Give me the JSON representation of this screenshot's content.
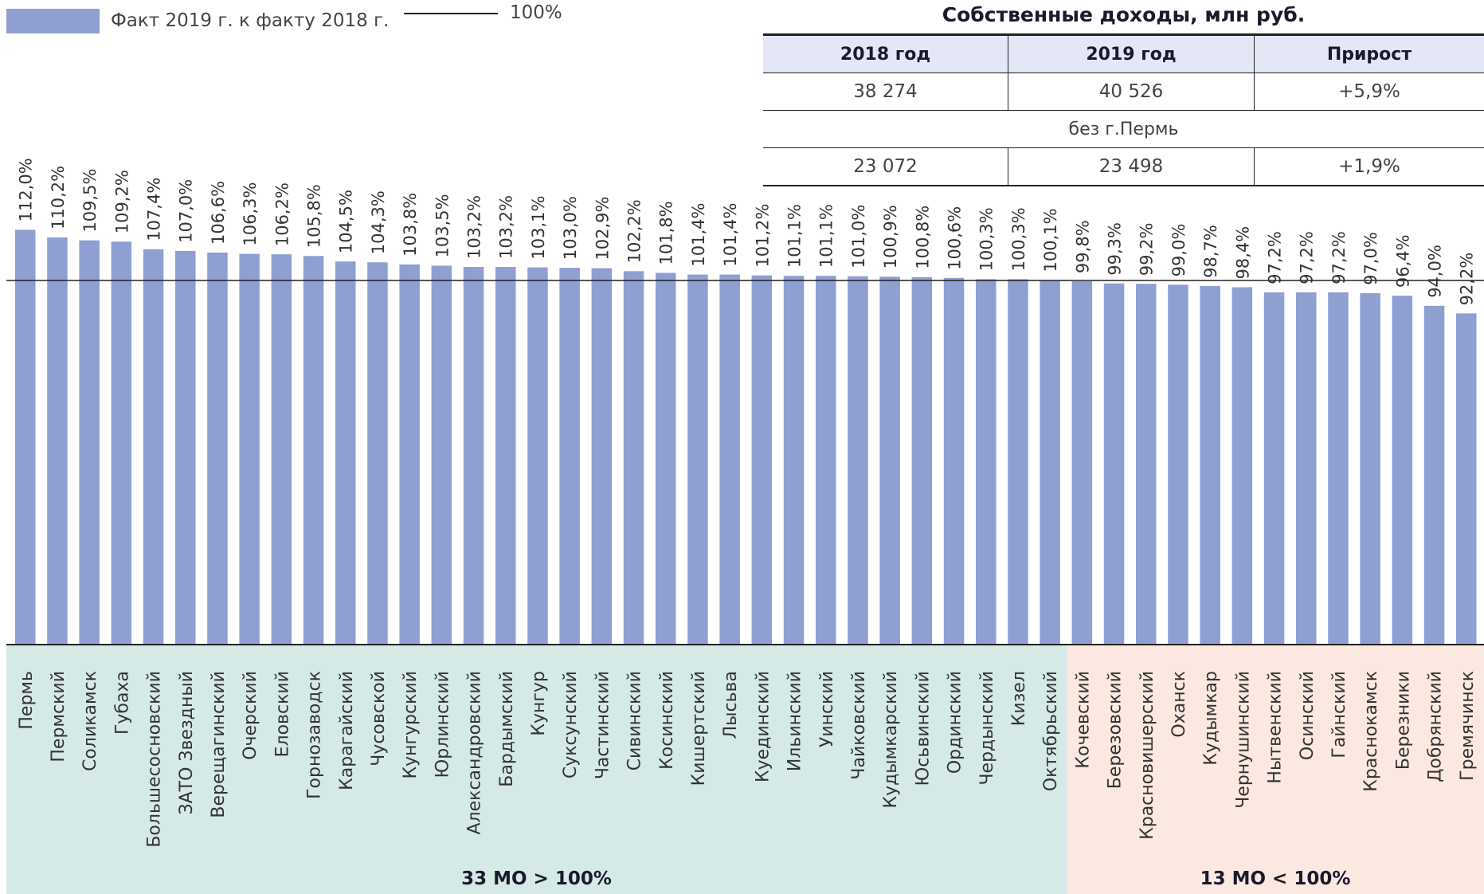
{
  "legend": {
    "series_label": "Факт 2019 г. к факту 2018 г.",
    "line_label": "100%"
  },
  "income_table": {
    "title": "Собственные доходы, млн руб.",
    "headers": [
      "2018 год",
      "2019 год",
      "Прирост"
    ],
    "row_total": [
      "38 274",
      "40 526",
      "+5,9%"
    ],
    "note": "без г.Пермь",
    "row_excl": [
      "23 072",
      "23 498",
      "+1,9%"
    ]
  },
  "colors": {
    "bar": "#8f9fd2",
    "group_above": "#d5eae6",
    "group_below": "#fbe8e0"
  },
  "chart_data": {
    "type": "bar",
    "reference_line": 100,
    "categories": [
      "Пермь",
      "Пермский",
      "Соликамск",
      "Губаха",
      "Большесосновский",
      "ЗАТО Звездный",
      "Верещагинский",
      "Очерский",
      "Еловский",
      "Горнозаводск",
      "Карагайский",
      "Чусовской",
      "Кунгурский",
      "Юрлинский",
      "Александровский",
      "Бардымский",
      "Кунгур",
      "Суксунский",
      "Частинский",
      "Сивинский",
      "Косинский",
      "Кишертский",
      "Лысьва",
      "Куединский",
      "Ильинский",
      "Уинский",
      "Чайковский",
      "Кудымкарский",
      "Юсьвинский",
      "Ординский",
      "Чердынский",
      "Кизел",
      "Октябрьский",
      "Кочевский",
      "Березовский",
      "Красновишерский",
      "Оханск",
      "Кудымкар",
      "Чернушинский",
      "Нытвенский",
      "Осинский",
      "Гайнский",
      "Краснокамск",
      "Березники",
      "Добрянский",
      "Гремячинск"
    ],
    "values": [
      112.0,
      110.2,
      109.5,
      109.2,
      107.4,
      107.0,
      106.6,
      106.3,
      106.2,
      105.8,
      104.5,
      104.3,
      103.8,
      103.5,
      103.2,
      103.2,
      103.1,
      103.0,
      102.9,
      102.2,
      101.8,
      101.4,
      101.4,
      101.2,
      101.1,
      101.1,
      101.0,
      100.9,
      100.8,
      100.6,
      100.3,
      100.3,
      100.1,
      99.8,
      99.3,
      99.2,
      99.0,
      98.7,
      98.4,
      97.2,
      97.2,
      97.2,
      97.0,
      96.4,
      94.0,
      92.2
    ],
    "value_labels": [
      "112,0%",
      "110,2%",
      "109,5%",
      "109,2%",
      "107,4%",
      "107,0%",
      "106,6%",
      "106,3%",
      "106,2%",
      "105,8%",
      "104,5%",
      "104,3%",
      "103,8%",
      "103,5%",
      "103,2%",
      "103,2%",
      "103,1%",
      "103,0%",
      "102,9%",
      "102,2%",
      "101,8%",
      "101,4%",
      "101,4%",
      "101,2%",
      "101,1%",
      "101,1%",
      "101,0%",
      "100,9%",
      "100,8%",
      "100,6%",
      "100,3%",
      "100,3%",
      "100,1%",
      "99,8%",
      "99,3%",
      "99,2%",
      "99,0%",
      "98,7%",
      "98,4%",
      "97,2%",
      "97,2%",
      "97,2%",
      "97,0%",
      "96,4%",
      "94,0%",
      "92,2%"
    ],
    "groups": [
      {
        "label": "33 МО > 100%",
        "start": 0,
        "count": 33
      },
      {
        "label": "13 МО < 100%",
        "start": 33,
        "count": 13
      }
    ]
  }
}
